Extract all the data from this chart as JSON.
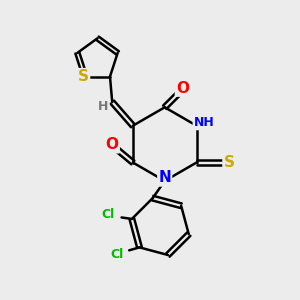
{
  "bg_color": "#ececec",
  "atom_colors": {
    "C": "#000000",
    "N": "#0000ff",
    "O": "#ff0000",
    "S": "#ccaa00",
    "Cl": "#00bb00",
    "H": "#777777"
  },
  "bond_color": "#000000",
  "fig_size": [
    3.0,
    3.0
  ],
  "dpi": 100
}
